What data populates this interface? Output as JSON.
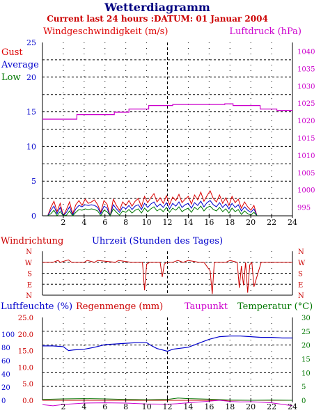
{
  "title": "Wetterdiagramm",
  "subtitle": "Current last 24 hours :DATUM: 01 Januar 2004",
  "colors": {
    "title": "#000080",
    "subtitle": "#cc0000",
    "gust": "#dd0000",
    "average": "#0000cc",
    "low": "#007700",
    "pressure": "#cc00cc",
    "direction": "#cc0000",
    "humidity": "#0000cc",
    "rain": "#cc0000",
    "dewpoint": "#cc00cc",
    "temperature": "#007700",
    "grid": "#000000",
    "axis": "#000000"
  },
  "chart_data": [
    {
      "type": "line",
      "title": "",
      "ylabel_left": "Windgeschwindigkeit (m/s)",
      "ylabel_right": "Luftdruck (hPa)",
      "legend": [
        "Gust",
        "Average",
        "Low"
      ],
      "x_ticks": [
        "2",
        "4",
        "6",
        "8",
        "10",
        "12",
        "14",
        "16",
        "18",
        "20",
        "22",
        "24"
      ],
      "x_range": [
        0,
        24
      ],
      "y_left_ticks": [
        "0",
        "5",
        "10",
        "15",
        "20",
        "25"
      ],
      "y_left_range": [
        0,
        25
      ],
      "y_right_ticks": [
        "995",
        "1000",
        "1005",
        "1010",
        "1015",
        "1020",
        "1025",
        "1030",
        "1035",
        "1040"
      ],
      "y_right_range": [
        992.5,
        1042.5
      ],
      "grid": true,
      "series": [
        {
          "name": "Luftdruck (hPa)",
          "axis": "right",
          "x": [
            0,
            3.3,
            3.3,
            6.9,
            6.9,
            8.3,
            8.3,
            10.2,
            10.2,
            12.5,
            12.5,
            17.5,
            17.5,
            18.3,
            18.3,
            20.9,
            20.9,
            22.5,
            22.5,
            24
          ],
          "y": [
            1020.4,
            1020.4,
            1021.7,
            1021.7,
            1022.4,
            1022.4,
            1023.3,
            1023.3,
            1024.3,
            1024.3,
            1024.6,
            1024.6,
            1024.8,
            1024.8,
            1024.3,
            1024.3,
            1023.3,
            1023.3,
            1022.9,
            1022.9
          ]
        },
        {
          "name": "Gust",
          "axis": "left",
          "x": [
            0.5,
            0.8,
            1.1,
            1.4,
            1.7,
            2.0,
            2.3,
            2.6,
            2.9,
            3.2,
            3.5,
            3.8,
            4.1,
            4.4,
            4.7,
            5.0,
            5.3,
            5.6,
            5.9,
            6.2,
            6.5,
            6.8,
            7.1,
            7.4,
            7.7,
            8.0,
            8.3,
            8.6,
            8.9,
            9.2,
            9.5,
            9.8,
            10.1,
            10.4,
            10.7,
            11.0,
            11.3,
            11.6,
            11.9,
            12.2,
            12.5,
            12.8,
            13.1,
            13.4,
            13.7,
            14.0,
            14.3,
            14.6,
            14.9,
            15.2,
            15.5,
            15.8,
            16.1,
            16.4,
            16.7,
            17.0,
            17.3,
            17.6,
            17.9,
            18.2,
            18.5,
            18.8,
            19.1,
            19.4,
            19.7,
            20.0,
            20.3,
            20.6
          ],
          "y": [
            0,
            1.2,
            2.1,
            0.6,
            1.8,
            0,
            0.9,
            2.0,
            0.3,
            1.6,
            2.2,
            1.5,
            2.4,
            1.8,
            2.0,
            2.3,
            1.6,
            0.5,
            2.2,
            1.7,
            0,
            2.4,
            1.5,
            0.8,
            2.0,
            1.5,
            2.2,
            1.4,
            2.1,
            2.5,
            1.3,
            2.8,
            1.9,
            2.6,
            3.2,
            2.0,
            2.6,
            1.8,
            2.9,
            1.6,
            2.7,
            2.2,
            3.1,
            1.9,
            2.4,
            2.8,
            1.7,
            3.0,
            2.3,
            3.4,
            2.1,
            2.9,
            3.6,
            2.5,
            2.0,
            3.0,
            1.8,
            2.6,
            1.5,
            2.8,
            1.9,
            2.4,
            1.1,
            2.0,
            1.3,
            0.8,
            1.5,
            0
          ]
        },
        {
          "name": "Average",
          "axis": "left",
          "x": [
            0.5,
            0.8,
            1.1,
            1.4,
            1.7,
            2.0,
            2.3,
            2.6,
            2.9,
            3.2,
            3.5,
            3.8,
            4.1,
            4.4,
            4.7,
            5.0,
            5.3,
            5.6,
            5.9,
            6.2,
            6.5,
            6.8,
            7.1,
            7.4,
            7.7,
            8.0,
            8.3,
            8.6,
            8.9,
            9.2,
            9.5,
            9.8,
            10.1,
            10.4,
            10.7,
            11.0,
            11.3,
            11.6,
            11.9,
            12.2,
            12.5,
            12.8,
            13.1,
            13.4,
            13.7,
            14.0,
            14.3,
            14.6,
            14.9,
            15.2,
            15.5,
            15.8,
            16.1,
            16.4,
            16.7,
            17.0,
            17.3,
            17.6,
            17.9,
            18.2,
            18.5,
            18.8,
            19.1,
            19.4,
            19.7,
            20.0,
            20.3,
            20.6
          ],
          "y": [
            0,
            0.8,
            1.4,
            0.3,
            1.2,
            0,
            0.5,
            1.3,
            0.1,
            1.0,
            1.5,
            1.3,
            1.6,
            1.5,
            1.6,
            1.5,
            1.2,
            0.3,
            1.4,
            1.1,
            0,
            1.6,
            1.0,
            0.5,
            1.3,
            1.0,
            1.5,
            0.9,
            1.4,
            1.6,
            0.9,
            1.8,
            1.2,
            1.7,
            2.0,
            1.3,
            1.7,
            1.2,
            1.9,
            1.0,
            1.8,
            1.4,
            2.0,
            1.2,
            1.6,
            1.8,
            1.1,
            1.9,
            1.5,
            2.1,
            1.3,
            1.9,
            2.2,
            1.6,
            1.3,
            1.9,
            1.2,
            1.7,
            1.0,
            1.8,
            1.2,
            1.6,
            0.7,
            1.3,
            0.8,
            0.5,
            1.0,
            0
          ]
        },
        {
          "name": "Low",
          "axis": "left",
          "x": [
            0.5,
            0.8,
            1.1,
            1.4,
            1.7,
            2.0,
            2.3,
            2.6,
            2.9,
            3.2,
            3.5,
            3.8,
            4.1,
            4.4,
            4.7,
            5.0,
            5.3,
            5.6,
            5.9,
            6.2,
            6.5,
            6.8,
            7.1,
            7.4,
            7.7,
            8.0,
            8.3,
            8.6,
            8.9,
            9.2,
            9.5,
            9.8,
            10.1,
            10.4,
            10.7,
            11.0,
            11.3,
            11.6,
            11.9,
            12.2,
            12.5,
            12.8,
            13.1,
            13.4,
            13.7,
            14.0,
            14.3,
            14.6,
            14.9,
            15.2,
            15.5,
            15.8,
            16.1,
            16.4,
            16.7,
            17.0,
            17.3,
            17.6,
            17.9,
            18.2,
            18.5,
            18.8,
            19.1,
            19.4,
            19.7,
            20.0,
            20.3,
            20.6
          ],
          "y": [
            0,
            0.3,
            0.8,
            0,
            0.6,
            0,
            0.1,
            0.7,
            0,
            0.5,
            0.9,
            0.8,
            1.0,
            0.9,
            1.0,
            0.9,
            0.7,
            0,
            0.8,
            0.6,
            0,
            1.0,
            0.5,
            0.1,
            0.7,
            0.5,
            0.9,
            0.4,
            0.8,
            1.0,
            0.4,
            1.1,
            0.6,
            1.0,
            1.3,
            0.7,
            1.0,
            0.6,
            1.2,
            0.5,
            1.1,
            0.8,
            1.3,
            0.6,
            0.9,
            1.1,
            0.5,
            1.2,
            0.9,
            1.4,
            0.7,
            1.2,
            1.4,
            0.9,
            0.7,
            1.2,
            0.6,
            1.0,
            0.4,
            1.1,
            0.6,
            0.9,
            0.2,
            0.7,
            0.3,
            0.1,
            0.5,
            0
          ]
        }
      ]
    },
    {
      "type": "line",
      "title": "",
      "ylabel_left": "Windrichtung",
      "xlabel": "Uhrzeit (Stunden des Tages)",
      "y_ticks": [
        "N",
        "W",
        "S",
        "E",
        "N"
      ],
      "y_values": [
        360,
        270,
        180,
        90,
        0
      ],
      "x_range": [
        0,
        24
      ],
      "grid": true,
      "series": [
        {
          "name": "Windrichtung",
          "x": [
            0,
            1.0,
            1.5,
            1.7,
            2.5,
            2.8,
            4.0,
            4.3,
            5.0,
            5.3,
            7.0,
            7.3,
            8.5,
            9.6,
            9.8,
            10.0,
            10.3,
            11.3,
            11.5,
            11.7,
            11.9,
            12.5,
            13.0,
            13.5,
            14.0,
            15.0,
            15.5,
            16.1,
            16.3,
            16.5,
            17.0,
            17.6,
            18.0,
            18.7,
            18.9,
            19.1,
            19.3,
            19.5,
            19.7,
            19.9,
            20.1,
            20.3,
            21.0,
            24.0
          ],
          "y": [
            270,
            270,
            285,
            270,
            290,
            270,
            270,
            285,
            270,
            285,
            270,
            285,
            270,
            270,
            40,
            255,
            270,
            270,
            150,
            255,
            270,
            270,
            285,
            270,
            285,
            270,
            270,
            200,
            10,
            270,
            270,
            270,
            285,
            270,
            60,
            240,
            80,
            270,
            20,
            250,
            270,
            70,
            270,
            270
          ]
        }
      ]
    },
    {
      "type": "line",
      "title": "",
      "labels": [
        "Luftfeuchte (%)",
        "Regenmenge (mm)",
        "Taupunkt",
        "Temperatur (°C)"
      ],
      "x_ticks": [
        "2",
        "4",
        "6",
        "8",
        "10",
        "12",
        "14",
        "16",
        "18",
        "20",
        "22",
        "24"
      ],
      "x_range": [
        0,
        24
      ],
      "y_left_ticks": [
        "0",
        "20",
        "40",
        "60",
        "80",
        "100"
      ],
      "y_left_range": [
        0,
        125
      ],
      "y_rain_ticks": [
        "0.0",
        "5.0",
        "10.0",
        "15.0",
        "20.0",
        "25.0"
      ],
      "y_rain_range": [
        0,
        25
      ],
      "y_right_ticks": [
        "0",
        "5",
        "10",
        "15",
        "20",
        "25",
        "30"
      ],
      "y_right_range": [
        0,
        30
      ],
      "grid": true,
      "series": [
        {
          "name": "Luftfeuchte (%)",
          "axis": "left",
          "x": [
            0,
            1,
            2,
            2.5,
            3,
            4,
            5,
            6,
            7,
            8,
            9,
            10,
            10.5,
            11,
            11.5,
            12,
            12.5,
            13,
            14,
            15,
            16,
            17,
            18,
            19,
            20,
            21,
            22,
            23,
            24
          ],
          "y": [
            82,
            82,
            81,
            75,
            76,
            77,
            80,
            84,
            85,
            86,
            87,
            87,
            82,
            78,
            76,
            74,
            77,
            78,
            80,
            86,
            92,
            96,
            97,
            97,
            96,
            95,
            95,
            94,
            94
          ]
        },
        {
          "name": "Regenmenge (mm)",
          "axis": "rain",
          "x": [
            0,
            24
          ],
          "y": [
            0,
            0
          ]
        },
        {
          "name": "Temperatur (°C)",
          "axis": "right",
          "x": [
            0,
            2,
            4,
            6,
            8,
            10,
            12,
            13,
            14,
            16,
            18,
            20,
            22,
            24
          ],
          "y": [
            0.3,
            0.5,
            0.6,
            0.5,
            0.3,
            0.2,
            0.3,
            0.8,
            0.6,
            0.4,
            0.1,
            0.0,
            0.1,
            0.0
          ]
        },
        {
          "name": "Taupunkt",
          "axis": "right",
          "x": [
            0,
            1,
            2,
            4,
            6,
            8,
            10,
            12,
            13,
            14,
            16,
            17,
            18,
            19,
            20,
            22,
            24
          ],
          "y": [
            -1.6,
            -2.0,
            -1.5,
            -1.0,
            -0.9,
            -1.0,
            -1.3,
            -1.4,
            -1.2,
            -0.9,
            -0.3,
            0.0,
            -0.4,
            -0.6,
            -0.5,
            -0.9,
            -2.0
          ]
        }
      ]
    }
  ]
}
